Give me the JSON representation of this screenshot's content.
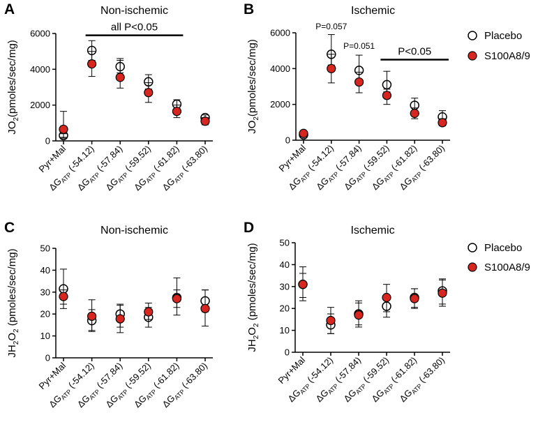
{
  "legend": {
    "placebo_label": "Placebo",
    "s100_label": "S100A8/9",
    "placebo_fill": "#ffffff",
    "s100_fill": "#d7261f"
  },
  "chart_data": [
    {
      "id": "A",
      "type": "scatter",
      "letter": "A",
      "title": "Non-ischemic",
      "ylabel_main": "JO",
      "ylabel_sub": "2",
      "ylabel_rest": "(pmoles/sec/mg)",
      "ylim": [
        0,
        6000
      ],
      "yticks": [
        "0",
        "2000",
        "4000",
        "6000"
      ],
      "categories": [
        "Pyr+Mal",
        "ΔGATP (-54.12)",
        "ΔGATP (-57.84)",
        "ΔGATP (-59.52)",
        "ΔGATP (-61.82)",
        "ΔGATP (-63.80)"
      ],
      "cat_parts": [
        {
          "main": "Pyr+Mal",
          "sub": "",
          "rest": ""
        },
        {
          "main": "ΔG",
          "sub": "ATP",
          "rest": " (-54.12)"
        },
        {
          "main": "ΔG",
          "sub": "ATP",
          "rest": " (-57.84)"
        },
        {
          "main": "ΔG",
          "sub": "ATP",
          "rest": " (-59.52)"
        },
        {
          "main": "ΔG",
          "sub": "ATP",
          "rest": " (-61.82)"
        },
        {
          "main": "ΔG",
          "sub": "ATP",
          "rest": " (-63.80)"
        }
      ],
      "series": [
        {
          "name": "Placebo",
          "values": [
            300,
            5050,
            4150,
            3300,
            2050,
            1300
          ],
          "err_low": [
            200,
            4500,
            3800,
            2900,
            1800,
            1100
          ],
          "err_high": [
            400,
            5600,
            4500,
            3700,
            2300,
            1450
          ]
        },
        {
          "name": "S100A8/9",
          "values": [
            650,
            4300,
            3550,
            2700,
            1650,
            1100
          ],
          "err_low": [
            150,
            3600,
            2950,
            2150,
            1300,
            900
          ],
          "err_high": [
            1650,
            5000,
            4600,
            3250,
            2000,
            1300
          ]
        }
      ],
      "annotations": [
        {
          "text": "all P<0.05",
          "bar_from": 1,
          "bar_to": 4,
          "y": 5900,
          "size": "big"
        }
      ]
    },
    {
      "id": "B",
      "type": "scatter",
      "letter": "B",
      "title": "Ischemic",
      "ylabel_main": "JO",
      "ylabel_sub": "2",
      "ylabel_rest": "(pmoles/sec/mg)",
      "ylim": [
        0,
        6000
      ],
      "yticks": [
        "0",
        "2000",
        "4000",
        "6000"
      ],
      "categories": [
        "Pyr+Mal",
        "ΔGATP (-54.12)",
        "ΔGATP (-57.84)",
        "ΔGATP (-59.52)",
        "ΔGATP (-61.82)",
        "ΔGATP (-63.80)"
      ],
      "cat_parts": [
        {
          "main": "Pyr+Mal",
          "sub": "",
          "rest": ""
        },
        {
          "main": "ΔG",
          "sub": "ATP",
          "rest": " (-54.12)"
        },
        {
          "main": "ΔG",
          "sub": "ATP",
          "rest": " (-57.84)"
        },
        {
          "main": "ΔG",
          "sub": "ATP",
          "rest": " (-59.52)"
        },
        {
          "main": "ΔG",
          "sub": "ATP",
          "rest": " (-61.82)"
        },
        {
          "main": "ΔG",
          "sub": "ATP",
          "rest": " (-63.80)"
        }
      ],
      "series": [
        {
          "name": "Placebo",
          "values": [
            300,
            4800,
            3900,
            3100,
            1950,
            1300
          ],
          "err_low": [
            200,
            4200,
            3400,
            2700,
            1600,
            1000
          ],
          "err_high": [
            400,
            5900,
            4750,
            3850,
            2350,
            1650
          ]
        },
        {
          "name": "S100A8/9",
          "values": [
            380,
            4000,
            3250,
            2500,
            1500,
            980
          ],
          "err_low": [
            300,
            3200,
            2650,
            2000,
            1200,
            800
          ],
          "err_high": [
            450,
            4800,
            3800,
            2850,
            1800,
            1200
          ]
        }
      ],
      "annotations": [
        {
          "text": "P=0.057",
          "bar_from": null,
          "bar_to": null,
          "x_cat": 1,
          "y": 6200,
          "size": "small"
        },
        {
          "text": "P=0.051",
          "bar_from": null,
          "bar_to": null,
          "x_cat": 2,
          "y": 5100,
          "size": "small"
        },
        {
          "text": "P<0.05",
          "bar_from": 3,
          "bar_to": 5,
          "y": 4500,
          "size": "big"
        }
      ]
    },
    {
      "id": "C",
      "type": "scatter",
      "letter": "C",
      "title": "Non-ischemic",
      "ylabel_main": "JH",
      "ylabel_sub": "2",
      "ylabel_main2": "O",
      "ylabel_sub2": "2",
      "ylabel_rest": " (pmoles/sec/mg)",
      "ylim": [
        0,
        50
      ],
      "yticks": [
        "0",
        "10",
        "20",
        "30",
        "40",
        "50"
      ],
      "categories": [
        "Pyr+Mal",
        "ΔGATP (-54.12)",
        "ΔGATP (-57.84)",
        "ΔGATP (-59.52)",
        "ΔGATP (-61.82)",
        "ΔGATP (-63.80)"
      ],
      "cat_parts": [
        {
          "main": "Pyr+Mal",
          "sub": "",
          "rest": ""
        },
        {
          "main": "ΔG",
          "sub": "ATP",
          "rest": " (-54.12)"
        },
        {
          "main": "ΔG",
          "sub": "ATP",
          "rest": " (-57.84)"
        },
        {
          "main": "ΔG",
          "sub": "ATP",
          "rest": " (-59.52)"
        },
        {
          "main": "ΔG",
          "sub": "ATP",
          "rest": " (-61.82)"
        },
        {
          "main": "ΔG",
          "sub": "ATP",
          "rest": " (-63.80)"
        }
      ],
      "series": [
        {
          "name": "Placebo",
          "values": [
            31.5,
            17.0,
            20.0,
            18.5,
            27.5,
            26.0
          ],
          "err_low": [
            22.5,
            12.0,
            14.0,
            14.0,
            19.5,
            21.0
          ],
          "err_high": [
            40.5,
            22.0,
            24.0,
            23.0,
            36.5,
            31.0
          ]
        },
        {
          "name": "S100A8/9",
          "values": [
            28.0,
            19.0,
            17.8,
            21.0,
            27.0,
            22.5
          ],
          "err_low": [
            24.5,
            12.5,
            11.5,
            17.5,
            23.0,
            14.5
          ],
          "err_high": [
            31.0,
            26.5,
            24.5,
            25.0,
            31.0,
            31.0
          ]
        }
      ],
      "annotations": []
    },
    {
      "id": "D",
      "type": "scatter",
      "letter": "D",
      "title": "Ischemic",
      "ylabel_main": "JH",
      "ylabel_sub": "2",
      "ylabel_main2": "O",
      "ylabel_sub2": "2",
      "ylabel_rest": " (pmoles/sec/mg)",
      "ylim": [
        0,
        50
      ],
      "yticks": [
        "0",
        "10",
        "20",
        "30",
        "40",
        "50"
      ],
      "categories": [
        "Pyr+Mal",
        "ΔGATP (-54.12)",
        "ΔGATP (-57.84)",
        "ΔGATP (-59.52)",
        "ΔGATP (-61.82)",
        "ΔGATP (-63.80)"
      ],
      "cat_parts": [
        {
          "main": "Pyr+Mal",
          "sub": "",
          "rest": ""
        },
        {
          "main": "ΔG",
          "sub": "ATP",
          "rest": " (-54.12)"
        },
        {
          "main": "ΔG",
          "sub": "ATP",
          "rest": " (-57.84)"
        },
        {
          "main": "ΔG",
          "sub": "ATP",
          "rest": " (-59.52)"
        },
        {
          "main": "ΔG",
          "sub": "ATP",
          "rest": " (-61.82)"
        },
        {
          "main": "ΔG",
          "sub": "ATP",
          "rest": " (-63.80)"
        }
      ],
      "series": [
        {
          "name": "Placebo",
          "values": [
            31.0,
            12.5,
            17.5,
            21.0,
            25.0,
            28.0
          ],
          "err_low": [
            23.5,
            8.5,
            11.5,
            16.0,
            20.5,
            22.0
          ],
          "err_high": [
            39.0,
            17.5,
            23.5,
            26.0,
            29.0,
            33.5
          ]
        },
        {
          "name": "S100A8/9",
          "values": [
            31.0,
            14.5,
            17.0,
            25.0,
            24.5,
            27.0
          ],
          "err_low": [
            25.0,
            8.5,
            12.5,
            18.5,
            20.0,
            21.0
          ],
          "err_high": [
            36.0,
            20.5,
            22.5,
            31.0,
            29.0,
            33.0
          ]
        }
      ],
      "annotations": []
    }
  ]
}
